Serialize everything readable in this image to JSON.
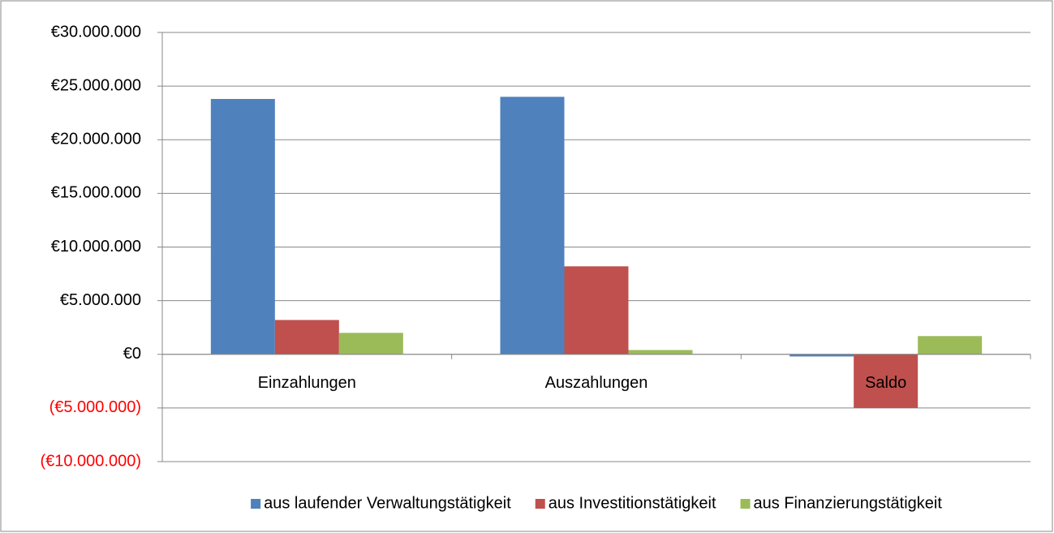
{
  "chart_data": {
    "type": "bar",
    "categories": [
      "Einzahlungen",
      "Auszahlungen",
      "Saldo"
    ],
    "series": [
      {
        "name": "aus laufender Verwaltungstätigkeit",
        "color": "#4f81bd",
        "values": [
          23800000,
          24000000,
          -200000
        ]
      },
      {
        "name": "aus Investitionstätigkeit",
        "color": "#c0504d",
        "values": [
          3200000,
          8200000,
          -5000000
        ]
      },
      {
        "name": "aus Finanzierungstätigkeit",
        "color": "#9bbb59",
        "values": [
          2000000,
          400000,
          1700000
        ]
      }
    ],
    "ylim": [
      -10000000,
      30000000
    ],
    "yticks": [
      {
        "value": -10000000,
        "label": "(€10.000.000)"
      },
      {
        "value": -5000000,
        "label": "(€5.000.000)"
      },
      {
        "value": 0,
        "label": "€0"
      },
      {
        "value": 5000000,
        "label": "€5.000.000"
      },
      {
        "value": 10000000,
        "label": "€10.000.000"
      },
      {
        "value": 15000000,
        "label": "€15.000.000"
      },
      {
        "value": 20000000,
        "label": "€20.000.000"
      },
      {
        "value": 25000000,
        "label": "€25.000.000"
      },
      {
        "value": 30000000,
        "label": "€30.000.000"
      }
    ],
    "negative_tick_color": "#ff0000",
    "grid": true,
    "legend": "bottom"
  }
}
